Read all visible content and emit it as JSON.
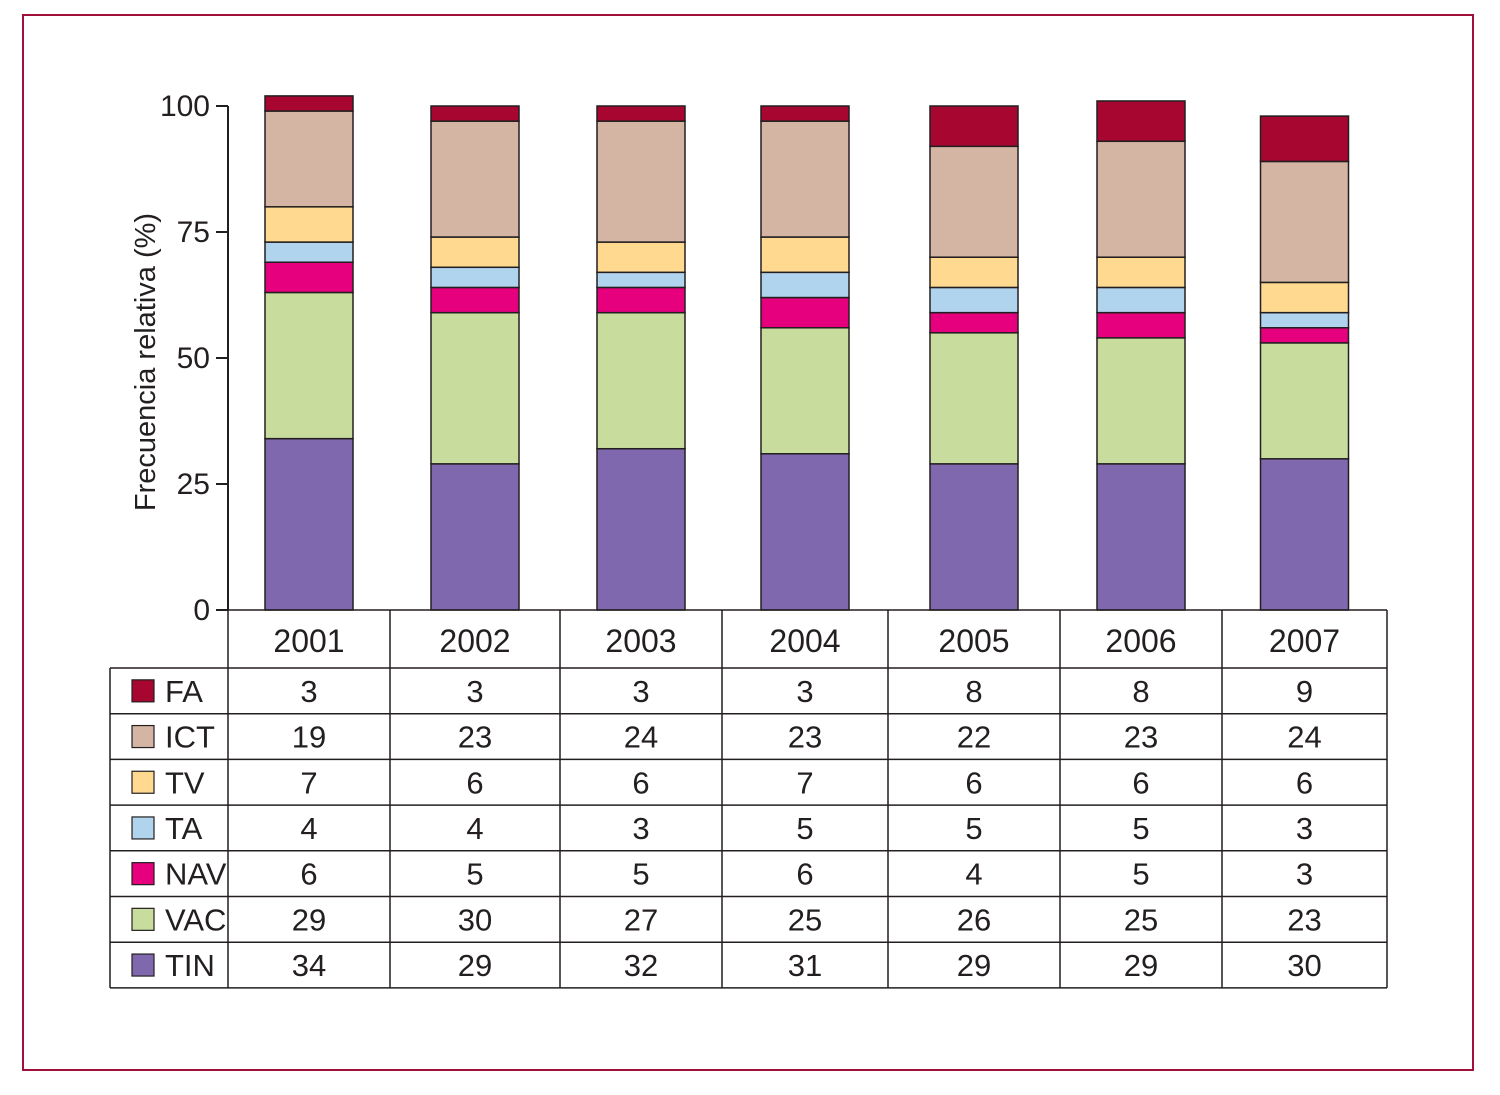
{
  "chart_data": {
    "type": "bar",
    "stacked": true,
    "ylabel": "Frecuencia relativa (%)",
    "ylim": [
      0,
      100
    ],
    "yticks": [
      0,
      25,
      50,
      75,
      100
    ],
    "grid": false,
    "legend_placement": "table below the chart",
    "categories": [
      "2001",
      "2002",
      "2003",
      "2004",
      "2005",
      "2006",
      "2007"
    ],
    "series": [
      {
        "name": "TIN",
        "color": "#7f68ad",
        "values": [
          34,
          29,
          32,
          31,
          29,
          29,
          30
        ]
      },
      {
        "name": "VAC",
        "color": "#c8dd9d",
        "values": [
          29,
          30,
          27,
          25,
          26,
          25,
          23
        ]
      },
      {
        "name": "NAV",
        "color": "#e6007e",
        "values": [
          6,
          5,
          5,
          6,
          4,
          5,
          3
        ]
      },
      {
        "name": "TA",
        "color": "#b0d3ee",
        "values": [
          4,
          4,
          3,
          5,
          5,
          5,
          3
        ]
      },
      {
        "name": "TV",
        "color": "#fed98f",
        "values": [
          7,
          6,
          6,
          7,
          6,
          6,
          6
        ]
      },
      {
        "name": "ICT",
        "color": "#d4b4a2",
        "values": [
          19,
          23,
          24,
          23,
          22,
          23,
          24
        ]
      },
      {
        "name": "FA",
        "color": "#a6062f",
        "values": [
          3,
          3,
          3,
          3,
          8,
          8,
          9
        ]
      }
    ]
  }
}
